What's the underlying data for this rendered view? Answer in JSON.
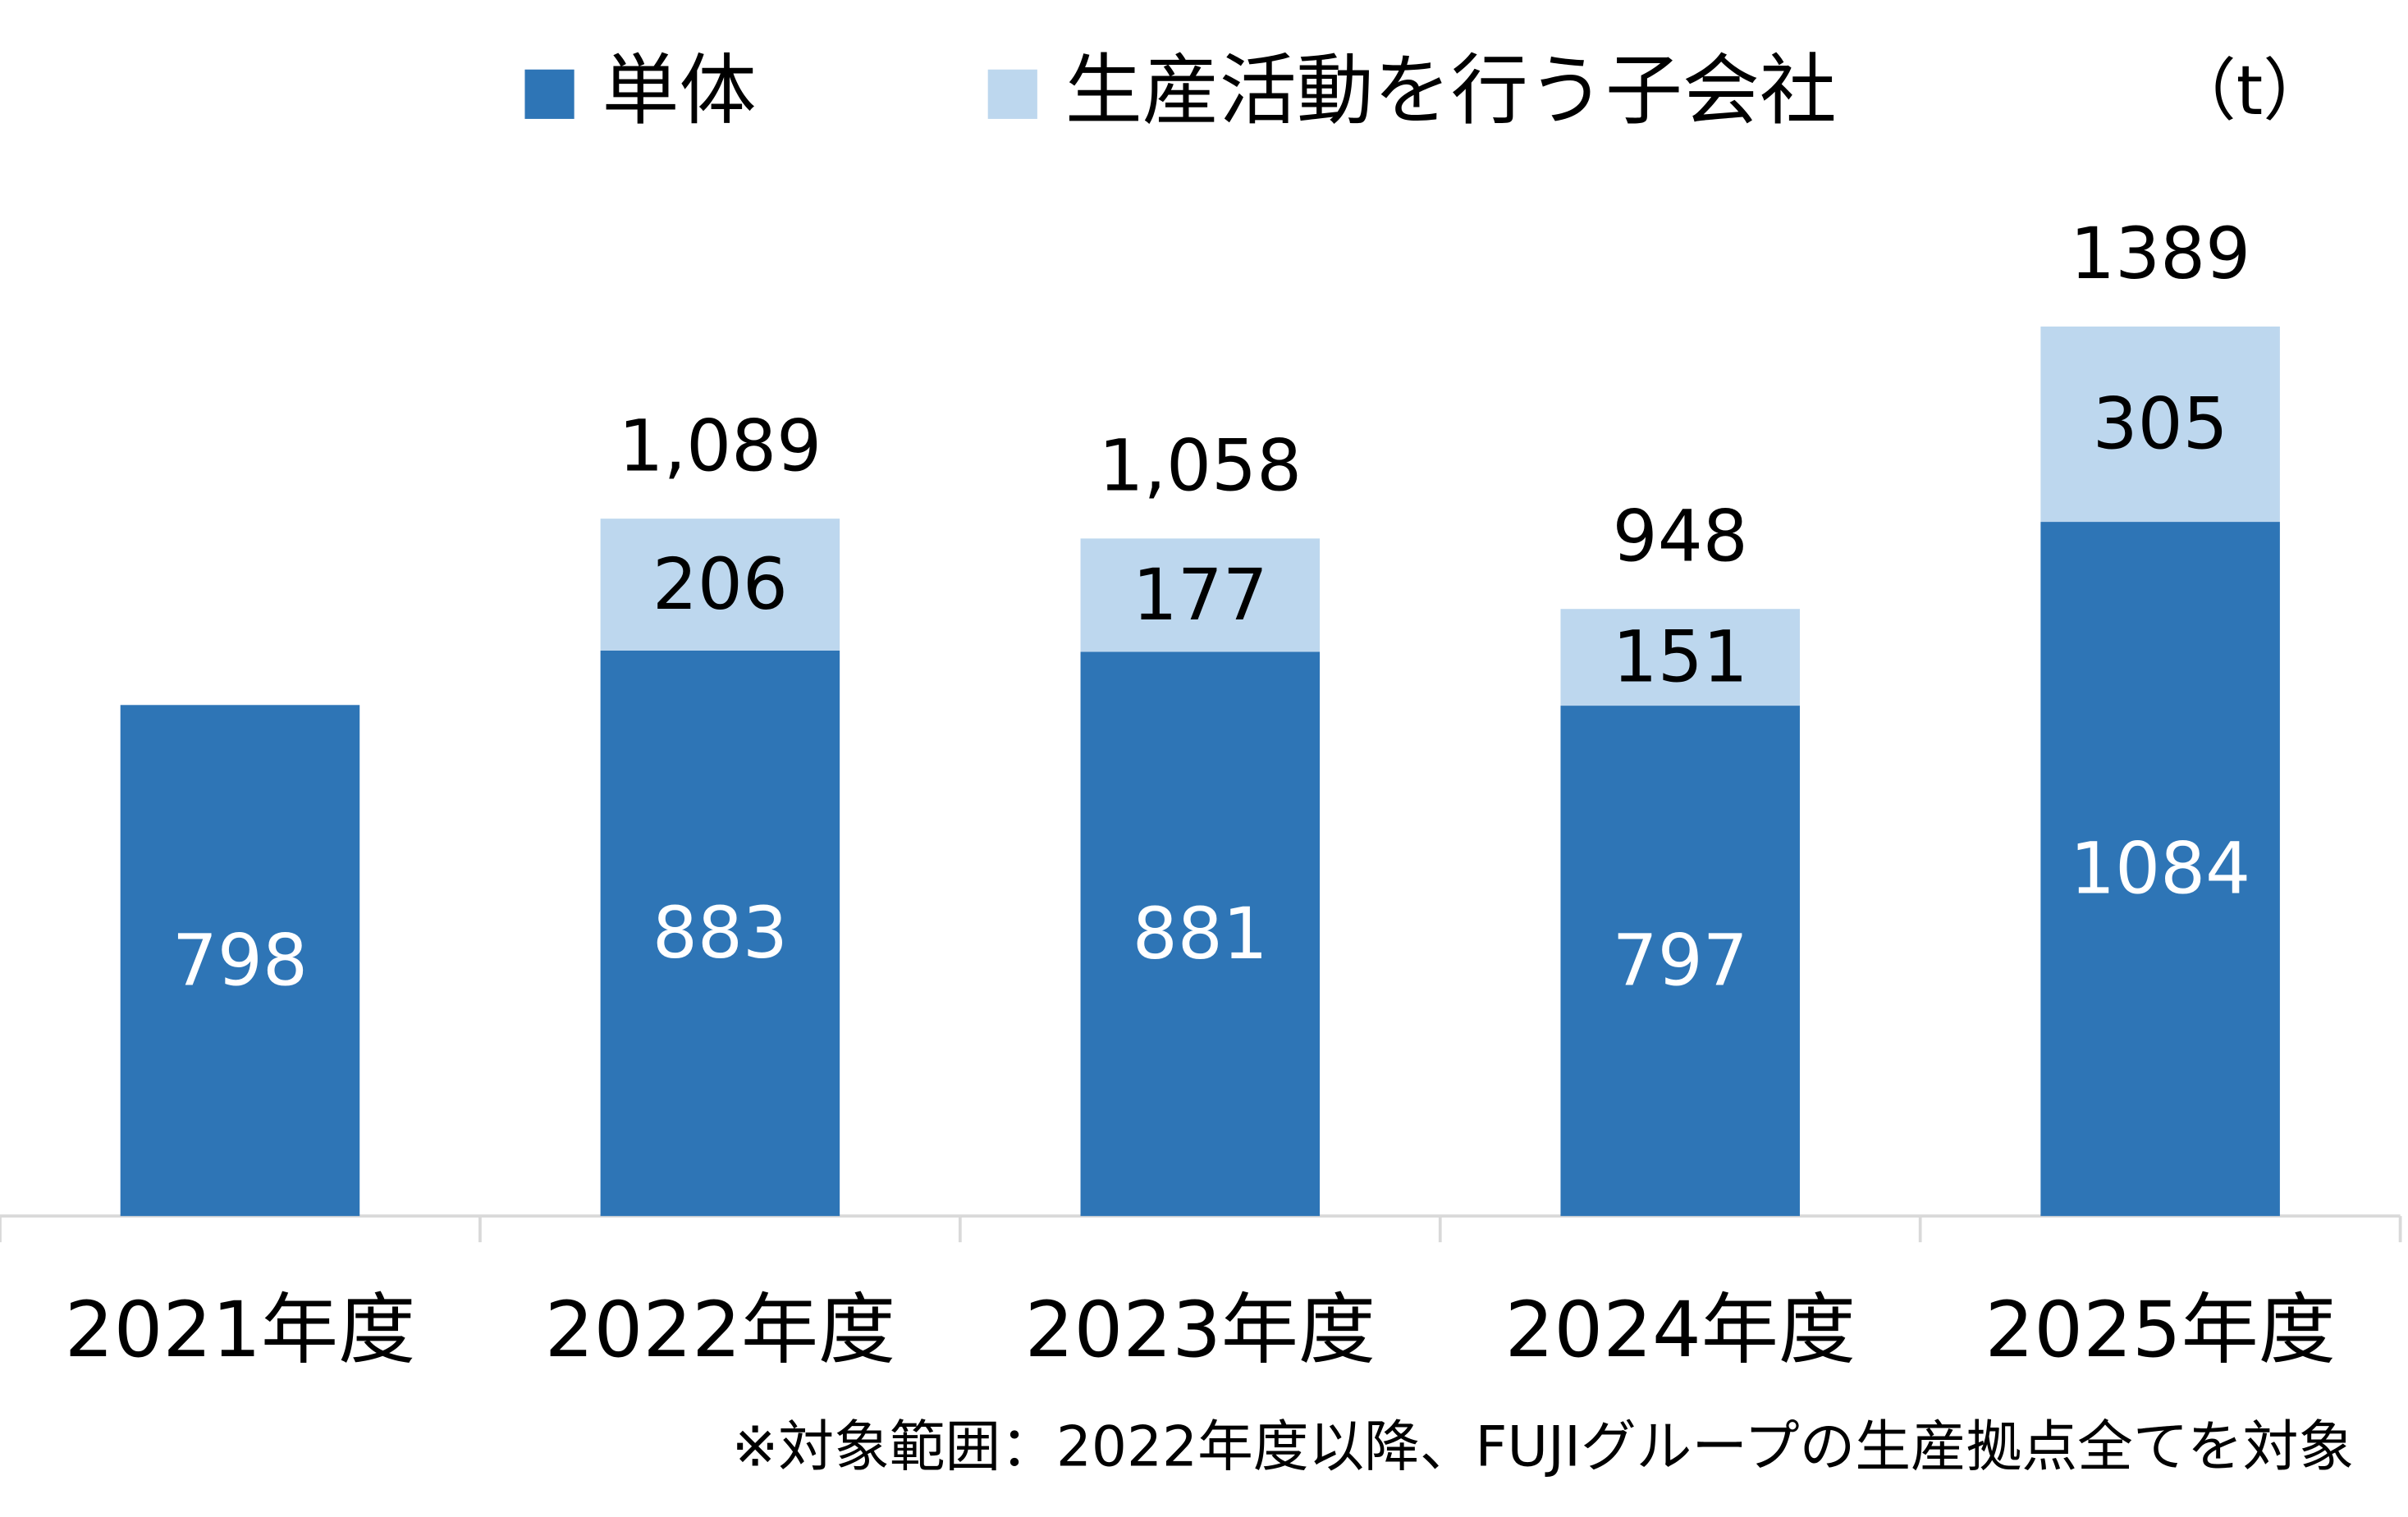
{
  "chart_data": {
    "type": "stacked-bar",
    "unit": "（t）",
    "footnote": "※対象範囲：2022年度以降、FUJIグループの生産拠点全てを対象",
    "categories": [
      "2021年度",
      "2022年度",
      "2023年度",
      "2024年度",
      "2025年度"
    ],
    "series": [
      {
        "name": "単体",
        "color": "#2e75b6",
        "label_color": "#ffffff",
        "values": [
          798,
          883,
          881,
          797,
          1084
        ]
      },
      {
        "name": "生産活動を行う子会社",
        "color": "#bdd7ee",
        "label_color": "#000000",
        "values": [
          null,
          206,
          177,
          151,
          305
        ]
      }
    ],
    "totals": {
      "values": [
        null,
        1089,
        1058,
        948,
        1389
      ],
      "value_labels": [
        null,
        "1,089",
        "1,058",
        "948",
        "1389"
      ]
    },
    "ylim": [
      0,
      1600
    ]
  }
}
